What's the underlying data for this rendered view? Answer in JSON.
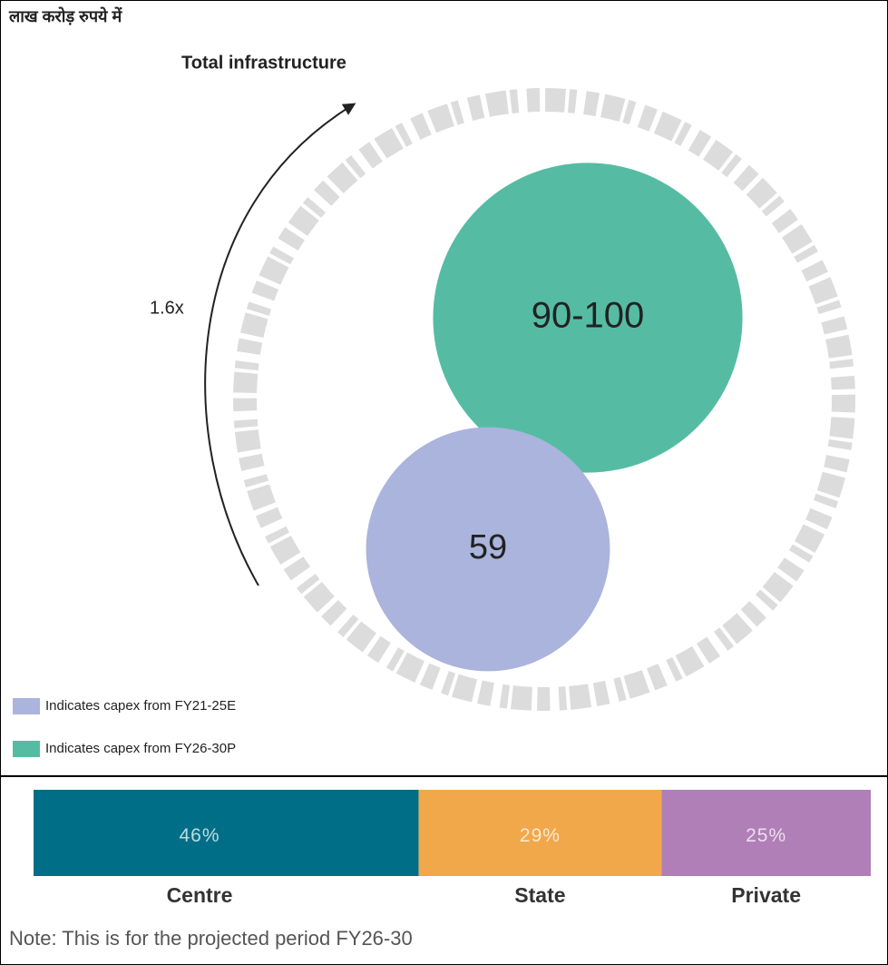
{
  "heading": "लाख करोड़ रुपये में",
  "chart_data": [
    {
      "type": "bubble",
      "title": "Total infrastructure",
      "annotation": "1.6x",
      "series": [
        {
          "name": "Indicates capex from FY21-25E",
          "color": "#aab4dd",
          "values": [
            59
          ]
        },
        {
          "name": "Indicates capex from FY26-30P",
          "color": "#55bca3",
          "values": [
            {
              "low": 90,
              "high": 100,
              "label": "90-100"
            }
          ]
        }
      ]
    },
    {
      "type": "stacked_bar",
      "categories": [
        "Centre",
        "State",
        "Private"
      ],
      "values": [
        46,
        29,
        25
      ],
      "value_labels": [
        "46%",
        "29%",
        "25%"
      ],
      "colors": [
        "#006e87",
        "#f1a84a",
        "#b07fb7"
      ],
      "note": "Note: This is for the projected period FY26-30"
    }
  ]
}
